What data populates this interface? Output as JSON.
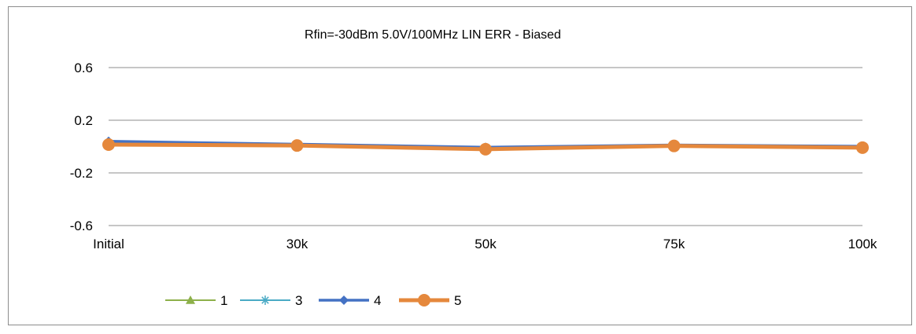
{
  "chart_data": {
    "type": "line",
    "title": "Rfin=-30dBm 5.0V/100MHz LIN ERR  - Biased",
    "xlabel": "",
    "ylabel": "",
    "categories": [
      "Initial",
      "30k",
      "50k",
      "75k",
      "100k"
    ],
    "ylim": [
      -0.6,
      0.6
    ],
    "yticks": [
      0.6,
      0.2,
      -0.2,
      -0.6
    ],
    "ytick_labels": [
      "0.6",
      "0.2",
      "-0.2",
      "-0.6"
    ],
    "grid": "horizontal",
    "legend_position": "bottom-left",
    "series": [
      {
        "name": "1",
        "marker": "triangle",
        "color": "#8db04a",
        "values": [
          0.02,
          0.015,
          -0.005,
          0.012,
          0.0
        ]
      },
      {
        "name": "3",
        "marker": "asterisk",
        "color": "#4aaac5",
        "values": [
          0.025,
          0.012,
          -0.01,
          0.01,
          -0.005
        ]
      },
      {
        "name": "4",
        "marker": "diamond",
        "color": "#4472c4",
        "values": [
          0.04,
          0.018,
          -0.005,
          0.012,
          0.002
        ]
      },
      {
        "name": "5",
        "marker": "circle",
        "color": "#e5883c",
        "values": [
          0.015,
          0.008,
          -0.02,
          0.005,
          -0.008
        ]
      }
    ]
  }
}
